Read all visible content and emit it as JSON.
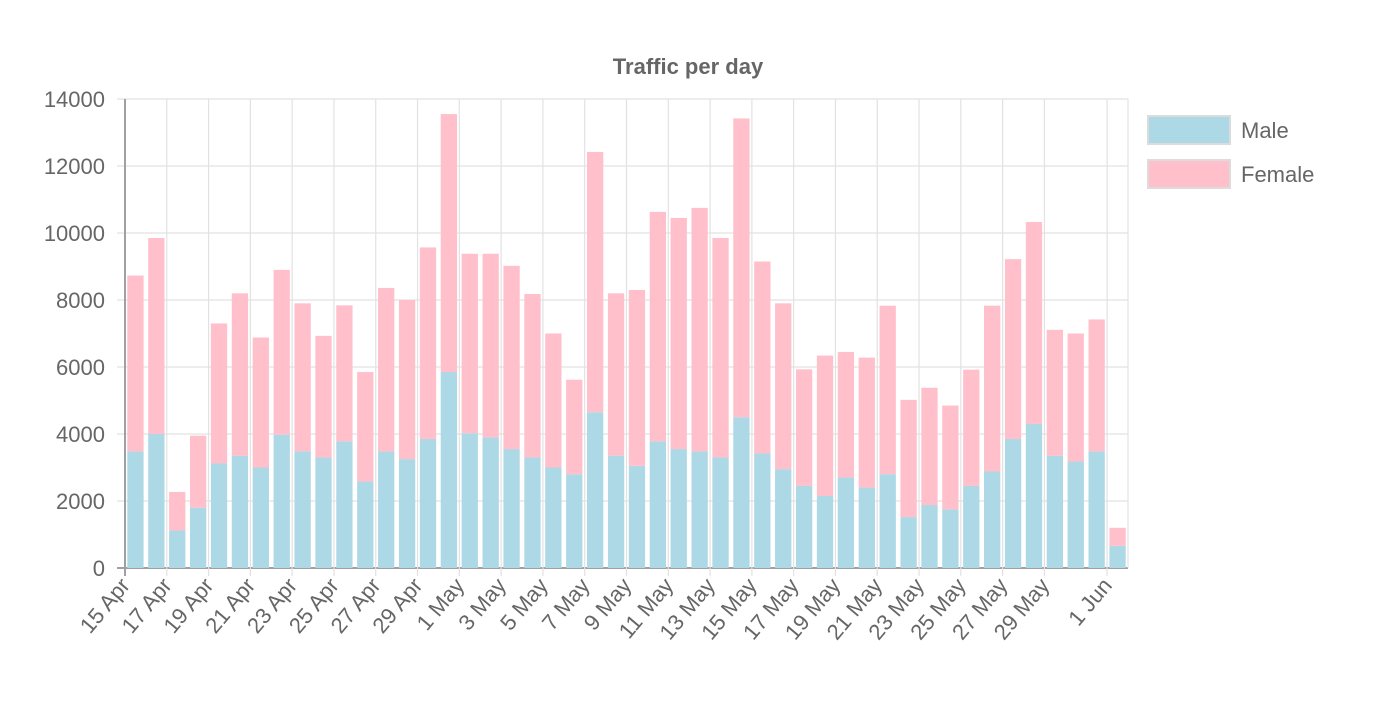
{
  "chart_data": {
    "type": "bar",
    "stacked": true,
    "title": "Traffic per day",
    "xlabel": "",
    "ylabel": "",
    "ylim": [
      0,
      14000
    ],
    "yticks": [
      "0",
      "2000",
      "4000",
      "6000",
      "8000",
      "10000",
      "12000",
      "14000"
    ],
    "grid": true,
    "legend_position": "right",
    "categories": [
      "15 Apr",
      "16 Apr",
      "17 Apr",
      "18 Apr",
      "19 Apr",
      "20 Apr",
      "21 Apr",
      "22 Apr",
      "23 Apr",
      "24 Apr",
      "25 Apr",
      "26 Apr",
      "27 Apr",
      "28 Apr",
      "29 Apr",
      "30 Apr",
      "1 May",
      "2 May",
      "3 May",
      "4 May",
      "5 May",
      "6 May",
      "7 May",
      "8 May",
      "9 May",
      "10 May",
      "11 May",
      "12 May",
      "13 May",
      "14 May",
      "15 May",
      "16 May",
      "17 May",
      "18 May",
      "19 May",
      "20 May",
      "21 May",
      "22 May",
      "23 May",
      "24 May",
      "25 May",
      "26 May",
      "27 May",
      "28 May",
      "29 May",
      "30 May",
      "31 May",
      "1 Jun"
    ],
    "x_tick_labels": [
      "15 Apr",
      "17 Apr",
      "19 Apr",
      "21 Apr",
      "23 Apr",
      "25 Apr",
      "27 Apr",
      "29 Apr",
      "1 May",
      "3 May",
      "5 May",
      "7 May",
      "9 May",
      "11 May",
      "13 May",
      "15 May",
      "17 May",
      "19 May",
      "21 May",
      "23 May",
      "25 May",
      "27 May",
      "29 May",
      "1 Jun"
    ],
    "series": [
      {
        "name": "Male",
        "color": "#add8e6",
        "values": [
          3480,
          4000,
          1120,
          1800,
          3120,
          3350,
          3000,
          3980,
          3480,
          3300,
          3780,
          2580,
          3480,
          3250,
          3850,
          5850,
          4020,
          3900,
          3550,
          3300,
          3000,
          2800,
          4650,
          3350,
          3050,
          3780,
          3550,
          3480,
          3300,
          4500,
          3420,
          2950,
          2450,
          2150,
          2700,
          2400,
          2800,
          1520,
          1880,
          1750,
          2450,
          2880,
          3850,
          4300,
          3350,
          3180,
          3480,
          660
        ]
      },
      {
        "name": "Female",
        "color": "#ffc0cb",
        "values": [
          5250,
          5850,
          1150,
          2150,
          4180,
          4850,
          3880,
          4920,
          4420,
          3630,
          4060,
          3270,
          4880,
          4750,
          5720,
          7700,
          5360,
          5480,
          5470,
          4880,
          4000,
          2820,
          7770,
          4850,
          5250,
          6850,
          6900,
          7270,
          6550,
          8920,
          5730,
          4950,
          3480,
          4190,
          3750,
          3880,
          5030,
          3500,
          3500,
          3100,
          3470,
          4950,
          5370,
          6030,
          3760,
          3820,
          3940,
          540
        ]
      }
    ]
  }
}
